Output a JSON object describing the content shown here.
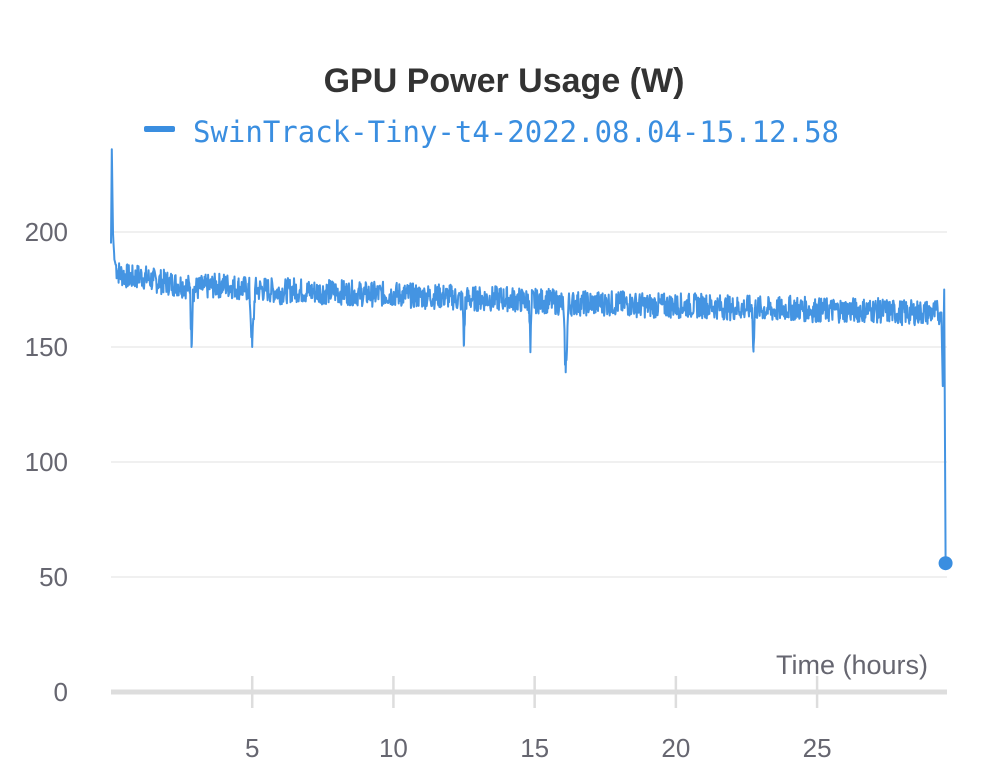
{
  "chart_data": {
    "type": "line",
    "title": "GPU Power Usage (W)",
    "xlabel": "Time (hours)",
    "ylabel": "",
    "xlim": [
      0,
      29.6
    ],
    "ylim": [
      0,
      240
    ],
    "x_ticks": [
      5,
      10,
      15,
      20,
      25
    ],
    "y_ticks": [
      0,
      50,
      100,
      150,
      200
    ],
    "grid": true,
    "legend_position": "top",
    "series": [
      {
        "name": "SwinTrack-Tiny-t4-2022.08.04-15.12.58",
        "color": "#3a8ee0",
        "x": [
          0.0,
          0.03,
          0.07,
          0.12,
          0.2,
          0.3,
          0.5,
          0.8,
          1.0,
          1.5,
          2.0,
          2.5,
          2.8,
          2.85,
          2.9,
          3.3,
          4.0,
          4.5,
          4.9,
          5.0,
          5.1,
          5.5,
          6.0,
          6.5,
          7.0,
          8.0,
          9.0,
          10.0,
          11.0,
          12.0,
          12.45,
          12.5,
          12.55,
          13.0,
          14.0,
          14.8,
          14.85,
          14.9,
          15.5,
          16.0,
          16.1,
          16.2,
          17.0,
          18.0,
          19.0,
          20.0,
          21.0,
          22.0,
          22.7,
          22.75,
          22.8,
          23.5,
          24.0,
          25.0,
          26.0,
          27.0,
          28.0,
          28.5,
          29.0,
          29.4,
          29.45,
          29.5,
          29.55
        ],
        "y": [
          195,
          236,
          200,
          188,
          184,
          182,
          181,
          180,
          181,
          179,
          178,
          177,
          176,
          150,
          175,
          176,
          177,
          176,
          175,
          150,
          175,
          175,
          174,
          175,
          174,
          174,
          173,
          173,
          172,
          172,
          170,
          151,
          171,
          171,
          171,
          170,
          148,
          170,
          170,
          169,
          139,
          169,
          169,
          169,
          168,
          168,
          168,
          167,
          167,
          148,
          167,
          166,
          167,
          166,
          166,
          166,
          165,
          165,
          165,
          165,
          133,
          175,
          56
        ]
      }
    ]
  }
}
